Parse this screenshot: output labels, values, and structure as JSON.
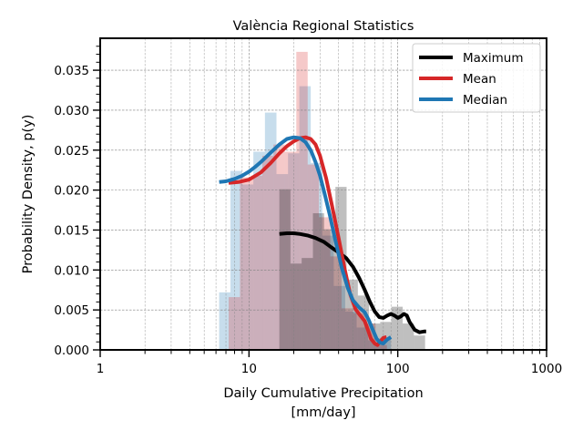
{
  "chart_data": {
    "type": "histogram-kde",
    "title": "València Regional Statistics",
    "xlabel_line1": "Daily Cumulative Precipitation",
    "xlabel_line2": "[mm/day]",
    "ylabel": "Probability Density, p(y)",
    "xscale": "log",
    "xlim": [
      1,
      1000
    ],
    "ylim": [
      0,
      0.039
    ],
    "xticks": [
      1,
      10,
      100,
      1000
    ],
    "xtick_labels": [
      "1",
      "10",
      "100",
      "1000"
    ],
    "yticks": [
      0,
      0.005,
      0.01,
      0.015,
      0.02,
      0.025,
      0.03,
      0.035
    ],
    "ytick_labels": [
      "0.000",
      "0.005",
      "0.010",
      "0.015",
      "0.020",
      "0.025",
      "0.030",
      "0.035"
    ],
    "grid": true,
    "legend_position": "upper-right",
    "histograms": [
      {
        "series": "Median",
        "edges": [
          6.3,
          7.5,
          9.0,
          10.7,
          12.8,
          15.3,
          18.3,
          21.8,
          26.0,
          31.1,
          37.1,
          44.3,
          52.9,
          63.1,
          75.4,
          90
        ],
        "values": [
          0.0072,
          0.0224,
          0.0207,
          0.0248,
          0.0297,
          0.022,
          0.0246,
          0.033,
          0.0234,
          0.0143,
          0.008,
          0.0048,
          0.0028,
          0.0012,
          0.0015
        ]
      },
      {
        "series": "Mean",
        "edges": [
          7.3,
          8.7,
          10.3,
          12.3,
          14.6,
          17.4,
          20.8,
          24.8,
          29.5,
          35.2,
          41.9,
          49.9,
          59.5,
          70.9,
          84.5
        ],
        "values": [
          0.0066,
          0.0216,
          0.0218,
          0.0243,
          0.0257,
          0.0248,
          0.0373,
          0.0232,
          0.0166,
          0.0117,
          0.0052,
          0.0046,
          0.0033,
          0.0006
        ]
      },
      {
        "series": "Maximum",
        "edges": [
          16.0,
          19.0,
          22.6,
          26.9,
          32.0,
          38.1,
          45.3,
          53.9,
          64.1,
          76.2,
          90.7,
          107.9,
          128.3,
          152.6
        ],
        "values": [
          0.0201,
          0.0108,
          0.0115,
          0.0171,
          0.0151,
          0.0204,
          0.0088,
          0.0068,
          0.0033,
          0.0035,
          0.0054,
          0.0033,
          0.0018
        ]
      }
    ],
    "series": [
      {
        "name": "Maximum",
        "color": "#000000",
        "x": [
          16,
          18,
          20,
          22,
          25,
          28,
          32,
          36,
          40,
          45,
          50,
          55,
          60,
          65,
          70,
          75,
          80,
          85,
          90,
          95,
          100,
          105,
          110,
          115,
          120,
          130,
          140,
          150,
          155
        ],
        "y": [
          0.0145,
          0.0146,
          0.0146,
          0.0145,
          0.0143,
          0.014,
          0.0135,
          0.0128,
          0.0122,
          0.0115,
          0.0104,
          0.009,
          0.0075,
          0.006,
          0.0048,
          0.0041,
          0.004,
          0.0043,
          0.0045,
          0.0043,
          0.004,
          0.0042,
          0.0045,
          0.0043,
          0.0035,
          0.0025,
          0.0022,
          0.0023,
          0.0023
        ]
      },
      {
        "name": "Mean",
        "color": "#d62728",
        "x": [
          7.3,
          8.5,
          10,
          12,
          14,
          16,
          18,
          20,
          22,
          24,
          26,
          28,
          30,
          33,
          36,
          40,
          44,
          48,
          52,
          56,
          60,
          63,
          66,
          70,
          73,
          76,
          80,
          84
        ],
        "y": [
          0.0209,
          0.021,
          0.0213,
          0.0222,
          0.0234,
          0.0246,
          0.0255,
          0.0261,
          0.0265,
          0.0266,
          0.0264,
          0.0257,
          0.0243,
          0.0215,
          0.0182,
          0.014,
          0.0101,
          0.0069,
          0.0051,
          0.0043,
          0.0036,
          0.0025,
          0.0014,
          0.0008,
          0.0006,
          0.001,
          0.0015,
          0.0016
        ]
      },
      {
        "name": "Median",
        "color": "#1f77b4",
        "x": [
          6.3,
          7,
          8,
          9,
          10,
          11,
          12,
          14,
          16,
          18,
          20,
          22,
          24,
          26,
          28,
          30,
          32,
          35,
          38,
          42,
          46,
          50,
          55,
          60,
          64,
          68,
          72,
          76,
          80,
          85,
          90
        ],
        "y": [
          0.021,
          0.0211,
          0.0214,
          0.0218,
          0.0223,
          0.0229,
          0.0235,
          0.0247,
          0.0257,
          0.0264,
          0.0266,
          0.0265,
          0.026,
          0.025,
          0.0235,
          0.0218,
          0.0198,
          0.0168,
          0.0138,
          0.0103,
          0.0078,
          0.0062,
          0.0053,
          0.0047,
          0.0037,
          0.0025,
          0.0014,
          0.0009,
          0.0008,
          0.0013,
          0.0016
        ]
      }
    ]
  }
}
